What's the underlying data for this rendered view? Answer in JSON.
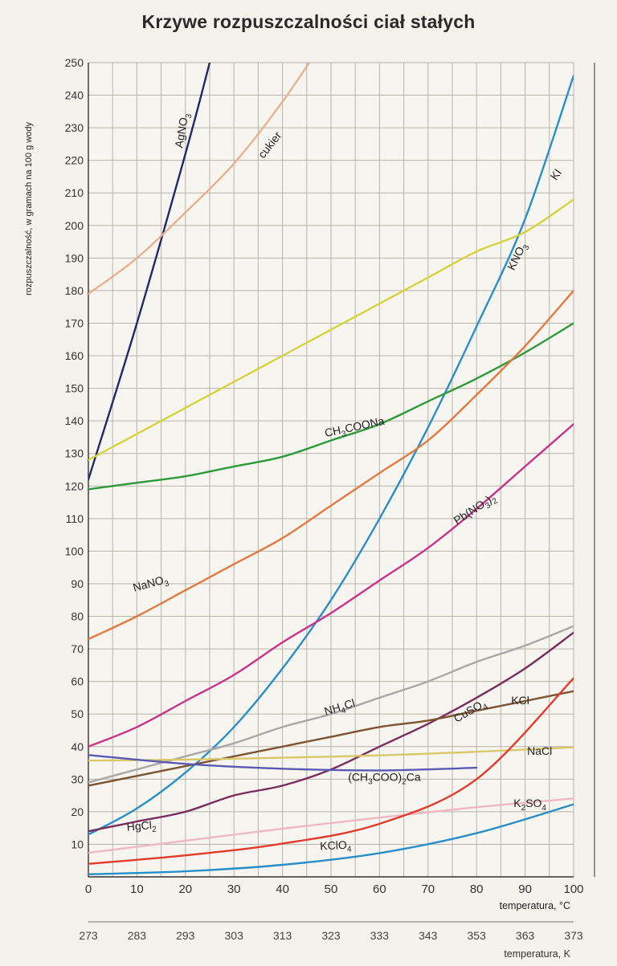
{
  "chart_data": {
    "type": "line",
    "title": "Krzywe rozpuszczalności ciał stałych",
    "ylabel": "rozpuszczalność, w gramach na 100 g wody",
    "xlabel": "temperatura, °C",
    "x2label": "temperatura, K",
    "xlim": [
      0,
      100
    ],
    "ylim": [
      0,
      250
    ],
    "grid": true,
    "x_ticks": [
      0,
      10,
      20,
      30,
      40,
      50,
      60,
      70,
      80,
      90,
      100
    ],
    "x2_ticks": [
      273,
      283,
      293,
      303,
      313,
      323,
      333,
      343,
      353,
      363,
      373
    ],
    "y_ticks": [
      10,
      20,
      30,
      40,
      50,
      60,
      70,
      80,
      90,
      100,
      110,
      120,
      130,
      140,
      150,
      160,
      170,
      180,
      190,
      200,
      210,
      220,
      230,
      240,
      250
    ],
    "series": [
      {
        "name": "AgNO3",
        "color": "#1f2a6b",
        "points": [
          [
            0,
            122
          ],
          [
            10,
            170
          ],
          [
            20,
            222
          ],
          [
            25,
            250
          ]
        ]
      },
      {
        "name": "cukier",
        "color": "#eab08e",
        "points": [
          [
            0,
            179
          ],
          [
            10,
            190
          ],
          [
            20,
            204
          ],
          [
            30,
            219
          ],
          [
            40,
            238
          ],
          [
            50,
            260
          ]
        ]
      },
      {
        "name": "KNO3",
        "color": "#2a8fc6",
        "points": [
          [
            0,
            13
          ],
          [
            10,
            21
          ],
          [
            20,
            32
          ],
          [
            30,
            46
          ],
          [
            40,
            64
          ],
          [
            50,
            85
          ],
          [
            60,
            110
          ],
          [
            70,
            138
          ],
          [
            80,
            169
          ],
          [
            90,
            202
          ],
          [
            100,
            246
          ]
        ]
      },
      {
        "name": "KI",
        "color": "#d6d43c",
        "points": [
          [
            0,
            128
          ],
          [
            10,
            136
          ],
          [
            20,
            144
          ],
          [
            30,
            152
          ],
          [
            40,
            160
          ],
          [
            50,
            168
          ],
          [
            60,
            176
          ],
          [
            70,
            184
          ],
          [
            80,
            192
          ],
          [
            90,
            198
          ],
          [
            100,
            208
          ]
        ]
      },
      {
        "name": "CH3COONa",
        "color": "#2e9a3a",
        "points": [
          [
            0,
            119
          ],
          [
            10,
            121
          ],
          [
            20,
            123
          ],
          [
            30,
            126
          ],
          [
            40,
            129
          ],
          [
            50,
            134
          ],
          [
            60,
            139
          ],
          [
            70,
            146
          ],
          [
            80,
            153
          ],
          [
            90,
            161
          ],
          [
            100,
            170
          ]
        ]
      },
      {
        "name": "NaNO3",
        "color": "#e27a3f",
        "points": [
          [
            0,
            73
          ],
          [
            10,
            80
          ],
          [
            20,
            88
          ],
          [
            30,
            96
          ],
          [
            40,
            104
          ],
          [
            50,
            114
          ],
          [
            60,
            124
          ],
          [
            70,
            134
          ],
          [
            80,
            148
          ],
          [
            90,
            163
          ],
          [
            100,
            180
          ]
        ]
      },
      {
        "name": "Pb(NO3)2",
        "color": "#c7338c",
        "points": [
          [
            0,
            40
          ],
          [
            10,
            46
          ],
          [
            20,
            54
          ],
          [
            30,
            62
          ],
          [
            40,
            72
          ],
          [
            50,
            81
          ],
          [
            60,
            91
          ],
          [
            70,
            101
          ],
          [
            80,
            113
          ],
          [
            90,
            126
          ],
          [
            100,
            139
          ]
        ]
      },
      {
        "name": "NH4Cl",
        "color": "#a8a8a8",
        "points": [
          [
            0,
            29
          ],
          [
            10,
            33
          ],
          [
            20,
            37
          ],
          [
            30,
            41
          ],
          [
            40,
            46
          ],
          [
            50,
            50
          ],
          [
            60,
            55
          ],
          [
            70,
            60
          ],
          [
            80,
            66
          ],
          [
            90,
            71
          ],
          [
            100,
            77
          ]
        ]
      },
      {
        "name": "CuSO4",
        "color": "#7a2c5e",
        "points": [
          [
            0,
            14
          ],
          [
            10,
            17
          ],
          [
            20,
            20
          ],
          [
            30,
            25
          ],
          [
            40,
            28
          ],
          [
            50,
            33
          ],
          [
            60,
            40
          ],
          [
            70,
            47
          ],
          [
            80,
            55
          ],
          [
            90,
            64
          ],
          [
            100,
            75
          ]
        ]
      },
      {
        "name": "KCl",
        "color": "#7f5230",
        "points": [
          [
            0,
            28
          ],
          [
            10,
            31
          ],
          [
            20,
            34
          ],
          [
            30,
            37
          ],
          [
            40,
            40
          ],
          [
            50,
            43
          ],
          [
            60,
            46
          ],
          [
            70,
            48
          ],
          [
            80,
            51
          ],
          [
            90,
            54
          ],
          [
            100,
            57
          ]
        ]
      },
      {
        "name": "NaCl",
        "color": "#d8c86a",
        "points": [
          [
            0,
            35.7
          ],
          [
            20,
            36
          ],
          [
            40,
            36.6
          ],
          [
            60,
            37.3
          ],
          [
            80,
            38.4
          ],
          [
            100,
            39.8
          ]
        ]
      },
      {
        "name": "(CH3COO)2Ca",
        "color": "#5a5ab5",
        "points": [
          [
            0,
            37.4
          ],
          [
            20,
            34.7
          ],
          [
            40,
            33.2
          ],
          [
            60,
            32.7
          ],
          [
            80,
            33.5
          ]
        ]
      },
      {
        "name": "K2SO4",
        "color": "#f0b8c2",
        "points": [
          [
            0,
            7.4
          ],
          [
            20,
            11.1
          ],
          [
            40,
            14.8
          ],
          [
            60,
            18.2
          ],
          [
            80,
            21.4
          ],
          [
            100,
            24.1
          ]
        ]
      },
      {
        "name": "HgCl2",
        "color": "#e23b2c",
        "points": [
          [
            0,
            4
          ],
          [
            20,
            6.6
          ],
          [
            40,
            10.2
          ],
          [
            60,
            16.3
          ],
          [
            80,
            30
          ],
          [
            100,
            61
          ]
        ]
      },
      {
        "name": "KClO4",
        "color": "#2a8fc6",
        "points": [
          [
            0,
            0.8
          ],
          [
            20,
            1.7
          ],
          [
            40,
            3.7
          ],
          [
            60,
            7.3
          ],
          [
            80,
            13.4
          ],
          [
            100,
            22.3
          ]
        ]
      }
    ]
  },
  "labels": {
    "AgNO3": [
      "AgNO",
      "3",
      ""
    ],
    "cukier": [
      "cukier",
      "",
      ""
    ],
    "KNO3": [
      "KNO",
      "3",
      ""
    ],
    "KI": [
      "KI",
      "",
      ""
    ],
    "CH3COONa": [
      "CH",
      "3",
      "COONa"
    ],
    "NaNO3": [
      "NaNO",
      "3",
      ""
    ],
    "Pb(NO3)2": [
      "Pb(NO",
      "3",
      ")",
      "2"
    ],
    "NH4Cl": [
      "NH",
      "4",
      "Cl"
    ],
    "CuSO4": [
      "CuSO",
      "4",
      ""
    ],
    "KCl": [
      "KCl",
      "",
      ""
    ],
    "NaCl": [
      "NaCl",
      "",
      ""
    ],
    "(CH3COO)2Ca": [
      "(CH",
      "3",
      "COO)",
      "2",
      "Ca"
    ],
    "K2SO4": [
      "K",
      "2",
      "SO",
      "4"
    ],
    "HgCl2": [
      "HgCl",
      "2",
      ""
    ],
    "KClO4": [
      "KClO",
      "4",
      ""
    ]
  }
}
